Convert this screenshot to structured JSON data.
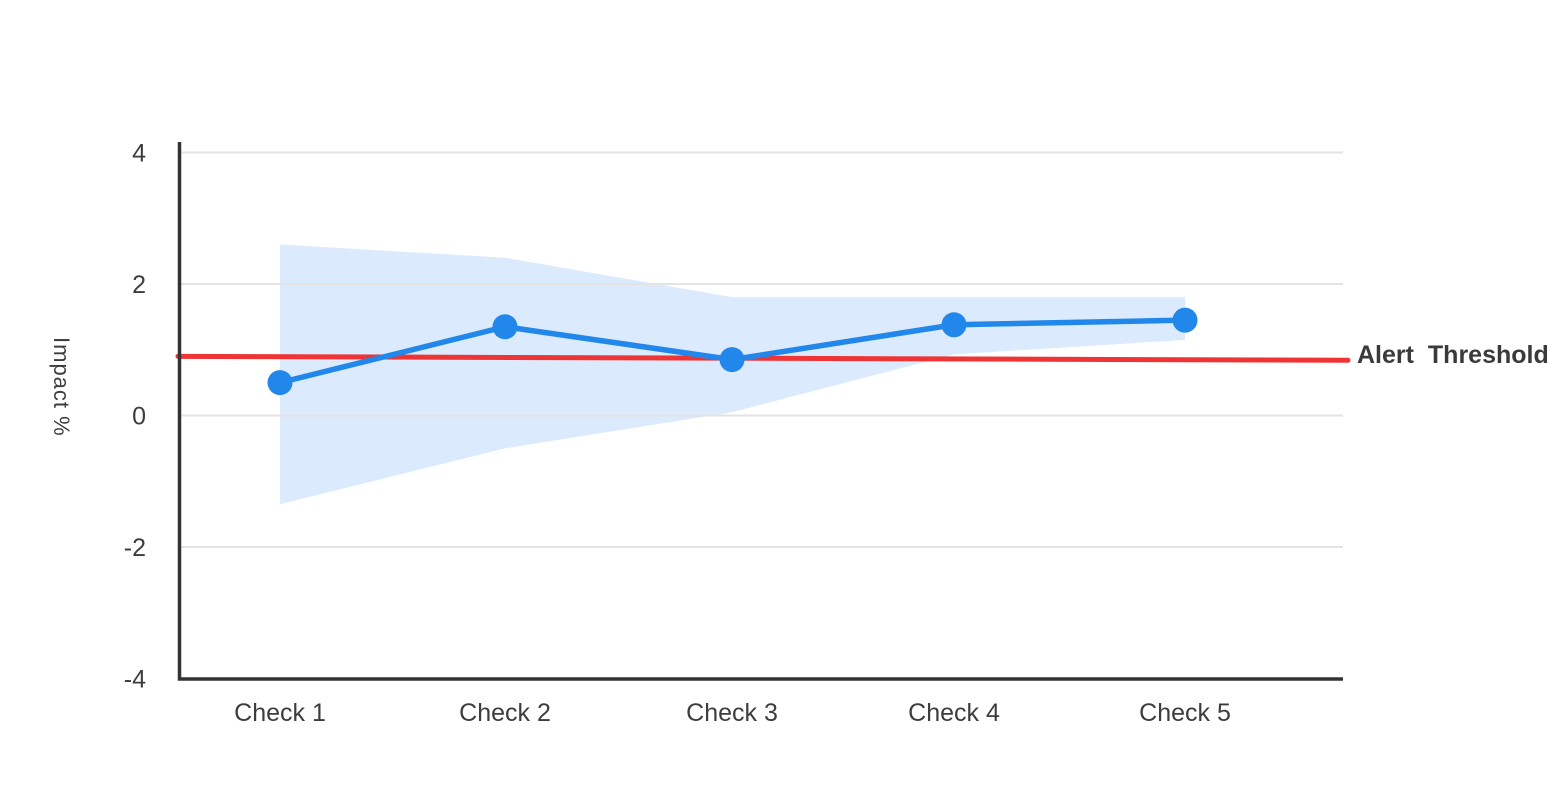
{
  "chart_data": {
    "type": "line",
    "categories": [
      "Check 1",
      "Check 2",
      "Check 3",
      "Check 4",
      "Check 5"
    ],
    "series": [
      {
        "name": "Impact",
        "values": [
          0.5,
          1.35,
          0.85,
          1.38,
          1.45
        ]
      }
    ],
    "confidence_band": {
      "upper": [
        2.6,
        2.4,
        1.8,
        1.8,
        1.8
      ],
      "lower": [
        -1.35,
        -0.5,
        0.05,
        0.93,
        1.15
      ]
    },
    "threshold": {
      "label": "Alert Threshold",
      "value": 0.9,
      "end_value": 0.84
    },
    "ylabel": "Impact %",
    "xlabel": "",
    "yticks": [
      "4",
      "2",
      "0",
      "-2",
      "-4"
    ],
    "ylim": [
      -4,
      4
    ],
    "grid": true,
    "legend": "none",
    "colors": {
      "line": "#2287ea",
      "band": "#dbeafc",
      "threshold": "#ee3434",
      "grid": "#e3e3e3",
      "axis": "#333333",
      "text": "#3d3d3d"
    }
  }
}
